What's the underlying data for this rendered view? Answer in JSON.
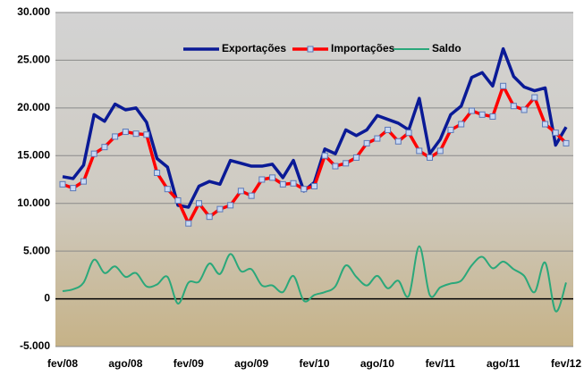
{
  "chart_data": {
    "type": "line",
    "categories": [
      "fev/08",
      null,
      null,
      null,
      null,
      null,
      "ago/08",
      null,
      null,
      null,
      null,
      null,
      "fev/09",
      null,
      null,
      null,
      null,
      null,
      "ago/09",
      null,
      null,
      null,
      null,
      null,
      "fev/10",
      null,
      null,
      null,
      null,
      null,
      "ago/10",
      null,
      null,
      null,
      null,
      null,
      "fev/11",
      null,
      null,
      null,
      null,
      null,
      "ago/11",
      null,
      null,
      null,
      null,
      null,
      "fev/12"
    ],
    "series": [
      {
        "name": "Exportações",
        "color": "#0a1a96",
        "values": [
          12800,
          12600,
          14000,
          19300,
          18600,
          20400,
          19800,
          20000,
          18500,
          14700,
          13800,
          9800,
          9600,
          11800,
          12300,
          12000,
          14500,
          14200,
          13900,
          13900,
          14100,
          12700,
          14500,
          11300,
          12200,
          15700,
          15200,
          17700,
          17100,
          17700,
          19200,
          18800,
          18400,
          17700,
          21000,
          15200,
          16700,
          19300,
          20200,
          23200,
          23700,
          22300,
          26200,
          23300,
          22200,
          21800,
          22100,
          16100,
          18000
        ]
      },
      {
        "name": "Importações",
        "color": "#ff0000",
        "values": [
          12000,
          11600,
          12300,
          15200,
          15900,
          17000,
          17500,
          17300,
          17200,
          13200,
          11500,
          10300,
          7900,
          10000,
          8600,
          9400,
          9800,
          11300,
          10800,
          12500,
          12700,
          12000,
          12100,
          11500,
          11800,
          15000,
          13900,
          14200,
          14800,
          16300,
          16800,
          17700,
          16500,
          17400,
          15500,
          14800,
          15500,
          17700,
          18300,
          19700,
          19300,
          19100,
          22300,
          20200,
          19800,
          21100,
          18300,
          17400,
          16300
        ]
      },
      {
        "name": "Saldo",
        "color": "#2aa87a",
        "values": [
          800,
          1000,
          1700,
          4100,
          2700,
          3400,
          2300,
          2700,
          1300,
          1500,
          2300,
          -500,
          1700,
          1800,
          3700,
          2600,
          4700,
          2900,
          3100,
          1400,
          1400,
          700,
          2400,
          -200,
          400,
          700,
          1300,
          3500,
          2300,
          1400,
          2400,
          1100,
          1900,
          300,
          5500,
          400,
          1200,
          1600,
          1900,
          3500,
          4400,
          3200,
          3900,
          3100,
          2400,
          700,
          3800,
          -1300,
          1700
        ]
      }
    ],
    "ylim": [
      -5000,
      30000
    ],
    "yticks": [
      {
        "value": -5000,
        "label": "-5.000"
      },
      0,
      {
        "value": 5000,
        "label": "5.000"
      },
      {
        "value": 10000,
        "label": "10.000"
      },
      {
        "value": 15000,
        "label": "15.000"
      },
      {
        "value": 20000,
        "label": "20.000"
      },
      {
        "value": 25000,
        "label": "25.000"
      },
      {
        "value": 30000,
        "label": "30.000"
      }
    ],
    "grid": true,
    "legend": "top"
  }
}
